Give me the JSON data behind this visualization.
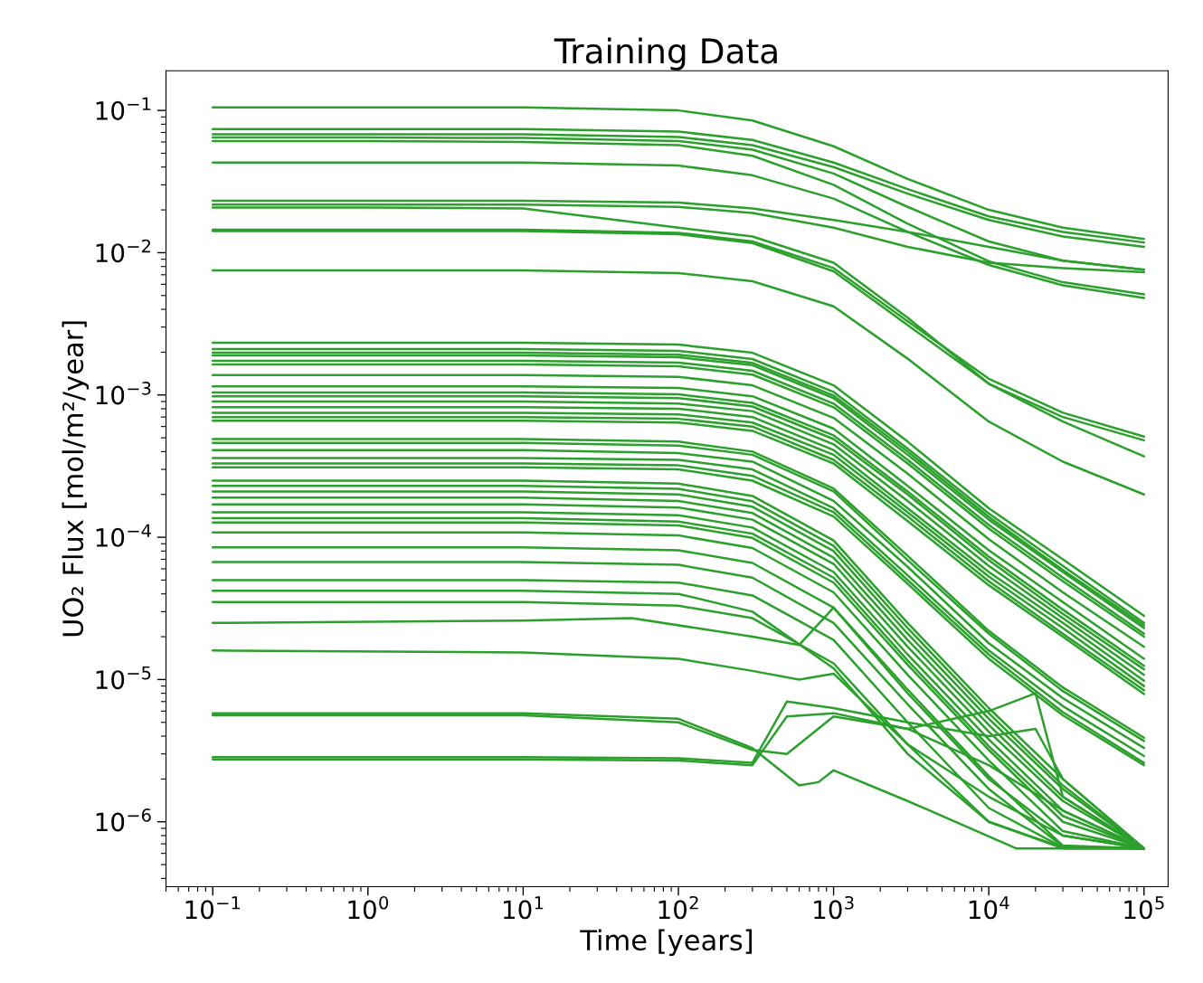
{
  "chart_data": {
    "type": "line",
    "title": "Training Data",
    "xlabel": "Time [years]",
    "ylabel": "UO₂ Flux [mol/m²/year]",
    "log": "xy",
    "xlim": [
      0.05,
      143000
    ],
    "ylim": [
      3.5e-07,
      0.19
    ],
    "xticks": [
      {
        "value": 0.1,
        "label": "10$^{−1}$"
      },
      {
        "value": 1,
        "label": "10$^{0}$"
      },
      {
        "value": 10,
        "label": "10$^{1}$"
      },
      {
        "value": 100,
        "label": "10$^{2}$"
      },
      {
        "value": 1000,
        "label": "10$^{3}$"
      },
      {
        "value": 10000,
        "label": "10$^{4}$"
      },
      {
        "value": 100000,
        "label": "10$^{5}$"
      }
    ],
    "yticks": [
      {
        "value": 1e-06,
        "label": "10$^{−6}$"
      },
      {
        "value": 1e-05,
        "label": "10$^{−5}$"
      },
      {
        "value": 0.0001,
        "label": "10$^{−4}$"
      },
      {
        "value": 0.001,
        "label": "10$^{−3}$"
      },
      {
        "value": 0.01,
        "label": "10$^{−2}$"
      },
      {
        "value": 0.1,
        "label": "10$^{−1}$"
      }
    ],
    "x": [
      0.1,
      1,
      10,
      100,
      300,
      1000,
      3000,
      10000,
      30000,
      100000
    ],
    "series": [
      {
        "color": "#2ca02c",
        "values": [
          0.105,
          0.105,
          0.105,
          0.1,
          0.085,
          0.056,
          0.033,
          0.02,
          0.015,
          0.0125
        ]
      },
      {
        "color": "#2ca02c",
        "values": [
          0.074,
          0.074,
          0.074,
          0.071,
          0.062,
          0.043,
          0.028,
          0.018,
          0.014,
          0.0118
        ]
      },
      {
        "color": "#2ca02c",
        "values": [
          0.068,
          0.068,
          0.068,
          0.065,
          0.057,
          0.04,
          0.026,
          0.017,
          0.013,
          0.011
        ]
      },
      {
        "color": "#2ca02c",
        "values": [
          0.0645,
          0.0645,
          0.064,
          0.061,
          0.053,
          0.036,
          0.021,
          0.012,
          0.0088,
          0.0076
        ]
      },
      {
        "color": "#2ca02c",
        "values": [
          0.061,
          0.061,
          0.06,
          0.057,
          0.048,
          0.03,
          0.016,
          0.0087,
          0.0062,
          0.0051
        ]
      },
      {
        "color": "#2ca02c",
        "values": [
          0.043,
          0.043,
          0.043,
          0.041,
          0.035,
          0.024,
          0.014,
          0.0082,
          0.0059,
          0.0048
        ]
      },
      {
        "color": "#2ca02c",
        "values": [
          0.0232,
          0.0232,
          0.0232,
          0.0225,
          0.0205,
          0.017,
          0.014,
          0.011,
          0.0088,
          0.0076
        ]
      },
      {
        "color": "#2ca02c",
        "values": [
          0.0218,
          0.0218,
          0.0218,
          0.021,
          0.019,
          0.015,
          0.011,
          0.0085,
          0.0078,
          0.0073
        ]
      },
      {
        "color": "#2ca02c",
        "values": [
          0.0208,
          0.0208,
          0.0205,
          0.015,
          0.013,
          0.0085,
          0.0035,
          0.0012,
          0.00065,
          0.00037
        ]
      },
      {
        "color": "#2ca02c",
        "values": [
          0.0145,
          0.0145,
          0.0145,
          0.0138,
          0.012,
          0.0078,
          0.0033,
          0.0013,
          0.00075,
          0.00051
        ]
      },
      {
        "color": "#2ca02c",
        "values": [
          0.0142,
          0.0142,
          0.0142,
          0.0135,
          0.0117,
          0.0074,
          0.0031,
          0.0012,
          0.0007,
          0.00048
        ]
      },
      {
        "color": "#2ca02c",
        "values": [
          0.0075,
          0.0075,
          0.0075,
          0.0072,
          0.0063,
          0.0042,
          0.0018,
          0.00065,
          0.00034,
          0.0002
        ]
      },
      {
        "color": "#2ca02c",
        "values": [
          0.00233,
          0.00233,
          0.00233,
          0.00226,
          0.00198,
          0.00117,
          0.00047,
          0.00016,
          7e-05,
          2.8e-05
        ]
      },
      {
        "color": "#2ca02c",
        "values": [
          0.0021,
          0.0021,
          0.0021,
          0.00204,
          0.00179,
          0.00105,
          0.00042,
          0.000147,
          6.3e-05,
          2.5e-05
        ]
      },
      {
        "color": "#2ca02c",
        "values": [
          0.00198,
          0.00198,
          0.00198,
          0.00192,
          0.00168,
          0.00099,
          0.0004,
          0.000139,
          5.9e-05,
          2.4e-05
        ]
      },
      {
        "color": "#2ca02c",
        "values": [
          0.0019,
          0.0019,
          0.0019,
          0.00184,
          0.00162,
          0.00095,
          0.00038,
          0.000133,
          5.7e-05,
          2.3e-05
        ]
      },
      {
        "color": "#2ca02c",
        "values": [
          0.00174,
          0.00174,
          0.00174,
          0.00169,
          0.00148,
          0.00087,
          0.00035,
          0.000122,
          5.2e-05,
          2.1e-05
        ]
      },
      {
        "color": "#2ca02c",
        "values": [
          0.00164,
          0.00164,
          0.00164,
          0.00159,
          0.00139,
          0.00082,
          0.00033,
          0.000115,
          4.9e-05,
          2e-05
        ]
      },
      {
        "color": "#2ca02c",
        "values": [
          0.00138,
          0.00138,
          0.00138,
          0.00134,
          0.00117,
          0.00069,
          0.00028,
          9.7e-05,
          4.1e-05,
          1.7e-05
        ]
      },
      {
        "color": "#2ca02c",
        "values": [
          0.00115,
          0.00115,
          0.00115,
          0.00112,
          0.00098,
          0.00058,
          0.00023,
          8.1e-05,
          3.5e-05,
          1.4e-05
        ]
      },
      {
        "color": "#2ca02c",
        "values": [
          0.00104,
          0.00104,
          0.00104,
          0.00101,
          0.00088,
          0.00052,
          0.00021,
          7.3e-05,
          3.1e-05,
          1.25e-05
        ]
      },
      {
        "color": "#2ca02c",
        "values": [
          0.00098,
          0.00098,
          0.00098,
          0.00095,
          0.00083,
          0.00049,
          0.0002,
          6.9e-05,
          2.9e-05,
          1.18e-05
        ]
      },
      {
        "color": "#2ca02c",
        "values": [
          0.0009,
          0.0009,
          0.0009,
          0.00087,
          0.00077,
          0.00045,
          0.00018,
          6.3e-05,
          2.7e-05,
          1.08e-05
        ]
      },
      {
        "color": "#2ca02c",
        "values": [
          0.00082,
          0.00082,
          0.00082,
          0.0008,
          0.0007,
          0.00041,
          0.00016,
          5.7e-05,
          2.5e-05,
          9.8e-06
        ]
      },
      {
        "color": "#2ca02c",
        "values": [
          0.00075,
          0.00075,
          0.00075,
          0.00073,
          0.00064,
          0.00038,
          0.00015,
          5.3e-05,
          2.3e-05,
          9e-06
        ]
      },
      {
        "color": "#2ca02c",
        "values": [
          0.0007,
          0.0007,
          0.0007,
          0.00068,
          0.0006,
          0.00035,
          0.00014,
          4.9e-05,
          2.1e-05,
          8.4e-06
        ]
      },
      {
        "color": "#2ca02c",
        "values": [
          0.00066,
          0.00066,
          0.00066,
          0.00064,
          0.00056,
          0.00033,
          0.00013,
          4.6e-05,
          2e-05,
          7.9e-06
        ]
      },
      {
        "color": "#2ca02c",
        "values": [
          0.00049,
          0.00049,
          0.00049,
          0.00047,
          0.0004,
          0.00022,
          7.4e-05,
          2.2e-05,
          8.8e-06,
          3.9e-06
        ]
      },
      {
        "color": "#2ca02c",
        "values": [
          0.00046,
          0.00046,
          0.00046,
          0.00044,
          0.00038,
          0.00021,
          6.9e-05,
          2.1e-05,
          8.3e-06,
          3.7e-06
        ]
      },
      {
        "color": "#2ca02c",
        "values": [
          0.00041,
          0.00041,
          0.00041,
          0.00039,
          0.00034,
          0.00018,
          6.2e-05,
          1.8e-05,
          7.4e-06,
          3.3e-06
        ]
      },
      {
        "color": "#2ca02c",
        "values": [
          0.00036,
          0.00036,
          0.00036,
          0.00035,
          0.0003,
          0.00016,
          5.4e-05,
          1.6e-05,
          6.5e-06,
          2.9e-06
        ]
      },
      {
        "color": "#2ca02c",
        "values": [
          0.00033,
          0.00033,
          0.00033,
          0.00032,
          0.00027,
          0.00015,
          5e-05,
          1.5e-05,
          5.9e-06,
          2.6e-06
        ]
      },
      {
        "color": "#2ca02c",
        "values": [
          0.00031,
          0.00031,
          0.00031,
          0.0003,
          0.00025,
          0.00014,
          4.7e-05,
          1.4e-05,
          5.6e-06,
          2.5e-06
        ]
      },
      {
        "color": "#2ca02c",
        "values": [
          0.00025,
          0.00025,
          0.00025,
          0.000238,
          0.000195,
          9.5e-05,
          2.5e-05,
          6.3e-06,
          2e-06,
          6.5e-07
        ]
      },
      {
        "color": "#2ca02c",
        "values": [
          0.00023,
          0.00023,
          0.00023,
          0.000219,
          0.000179,
          8.7e-05,
          2.3e-05,
          5.8e-06,
          1.8e-06,
          6.5e-07
        ]
      },
      {
        "color": "#2ca02c",
        "values": [
          0.00021,
          0.00021,
          0.00021,
          0.0002,
          0.000164,
          8e-05,
          2.1e-05,
          5.3e-06,
          1.7e-06,
          6.5e-07
        ]
      },
      {
        "color": "#2ca02c",
        "values": [
          0.00019,
          0.00019,
          0.00019,
          0.00018,
          0.000148,
          7.2e-05,
          1.9e-05,
          4.8e-06,
          1.5e-06,
          6.5e-07
        ]
      },
      {
        "color": "#2ca02c",
        "values": [
          0.00017,
          0.00017,
          0.00017,
          0.000162,
          0.000133,
          6.5e-05,
          1.7e-05,
          4.3e-06,
          1.4e-06,
          6.5e-07
        ]
      },
      {
        "color": "#2ca02c",
        "values": [
          0.00015,
          0.00015,
          0.00015,
          0.000143,
          0.000117,
          5.7e-05,
          1.5e-05,
          3.8e-06,
          1.2e-06,
          6.5e-07
        ]
      },
      {
        "color": "#2ca02c",
        "values": [
          0.000136,
          0.000136,
          0.000136,
          0.000129,
          0.000106,
          5.2e-05,
          1.36e-05,
          3.4e-06,
          1.1e-06,
          6.5e-07
        ]
      },
      {
        "color": "#2ca02c",
        "values": [
          0.000127,
          0.000127,
          0.000127,
          0.000121,
          9.9e-05,
          4.8e-05,
          1.27e-05,
          3.2e-06,
          1e-06,
          6.5e-07
        ]
      },
      {
        "color": "#2ca02c",
        "values": [
          0.000108,
          0.000108,
          0.000108,
          0.000103,
          8.4e-05,
          4.1e-05,
          1.08e-05,
          2.7e-06,
          8.6e-07,
          6.5e-07
        ]
      },
      {
        "color": "#2ca02c",
        "values": [
          8.5e-05,
          8.5e-05,
          8.5e-05,
          8.1e-05,
          6.6e-05,
          3.2e-05,
          8.5e-06,
          2.1e-06,
          6.8e-07,
          6.5e-07
        ]
      },
      {
        "color": "#2ca02c",
        "values": [
          6.7e-05,
          6.7e-05,
          6.7e-05,
          6.4e-05,
          5.2e-05,
          2.5e-05,
          6.7e-06,
          1.7e-06,
          6.7e-07,
          6.5e-07
        ]
      },
      {
        "color": "#2ca02c",
        "values": [
          5e-05,
          5e-05,
          5e-05,
          4.8e-05,
          3.9e-05,
          1.9e-05,
          5e-06,
          1.25e-06,
          6.6e-07,
          6.5e-07
        ]
      },
      {
        "color": "#2ca02c",
        "values": [
          4.2e-05,
          4.2e-05,
          4.2e-05,
          4e-05,
          3e-05,
          1.2e-05,
          3e-06,
          1e-06,
          6.5e-07,
          6.5e-07
        ]
      },
      {
        "color": "#2ca02c",
        "values": [
          3.5e-05,
          3.5e-05,
          3.5e-05,
          3.3e-05,
          2.7e-05,
          1.3e-05,
          3.5e-06,
          1e-06,
          6.6e-07,
          6.5e-07
        ]
      },
      {
        "color": "#2ca02c",
        "x": [
          0.1,
          10,
          50,
          300,
          600,
          1000,
          3000,
          10000,
          30000,
          100000
        ],
        "values": [
          2.5e-05,
          2.6e-05,
          2.7e-05,
          2e-05,
          1.75e-05,
          3.2e-05,
          8e-06,
          2e-06,
          8e-07,
          6.5e-07
        ]
      },
      {
        "color": "#2ca02c",
        "x": [
          0.1,
          10,
          100,
          300,
          600,
          1000,
          3000,
          10000,
          30000,
          100000
        ],
        "values": [
          1.6e-05,
          1.55e-05,
          1.4e-05,
          1.15e-05,
          1e-05,
          1.1e-05,
          3.5e-06,
          1.5e-06,
          8e-07,
          6.5e-07
        ]
      },
      {
        "color": "#2ca02c",
        "x": [
          0.1,
          10,
          100,
          300,
          600,
          800,
          1000,
          3000,
          15000,
          100000
        ],
        "values": [
          5.8e-06,
          5.8e-06,
          5.3e-06,
          3.3e-06,
          1.8e-06,
          1.9e-06,
          2.3e-06,
          1.4e-06,
          6.5e-07,
          6.5e-07
        ]
      },
      {
        "color": "#2ca02c",
        "x": [
          0.1,
          10,
          100,
          300,
          500,
          1000,
          3000,
          10000,
          30000,
          100000
        ],
        "values": [
          5.6e-06,
          5.6e-06,
          5e-06,
          3.2e-06,
          3e-06,
          5.5e-06,
          4.5e-06,
          2.5e-06,
          1.2e-06,
          6.5e-07
        ]
      },
      {
        "color": "#2ca02c",
        "x": [
          0.1,
          10,
          100,
          300,
          500,
          1000,
          3000,
          10000,
          20000,
          30000,
          100000
        ],
        "values": [
          2.85e-06,
          2.85e-06,
          2.8e-06,
          2.6e-06,
          7e-06,
          6.3e-06,
          5e-06,
          4e-06,
          4.5e-06,
          2e-06,
          6.5e-07
        ]
      },
      {
        "color": "#2ca02c",
        "x": [
          0.1,
          10,
          100,
          300,
          500,
          1000,
          3000,
          10000,
          20000,
          30000,
          100000
        ],
        "values": [
          2.75e-06,
          2.75e-06,
          2.7e-06,
          2.5e-06,
          5.5e-06,
          5.8e-06,
          4.5e-06,
          6e-06,
          8e-06,
          1.5e-06,
          6.5e-07
        ]
      }
    ]
  }
}
